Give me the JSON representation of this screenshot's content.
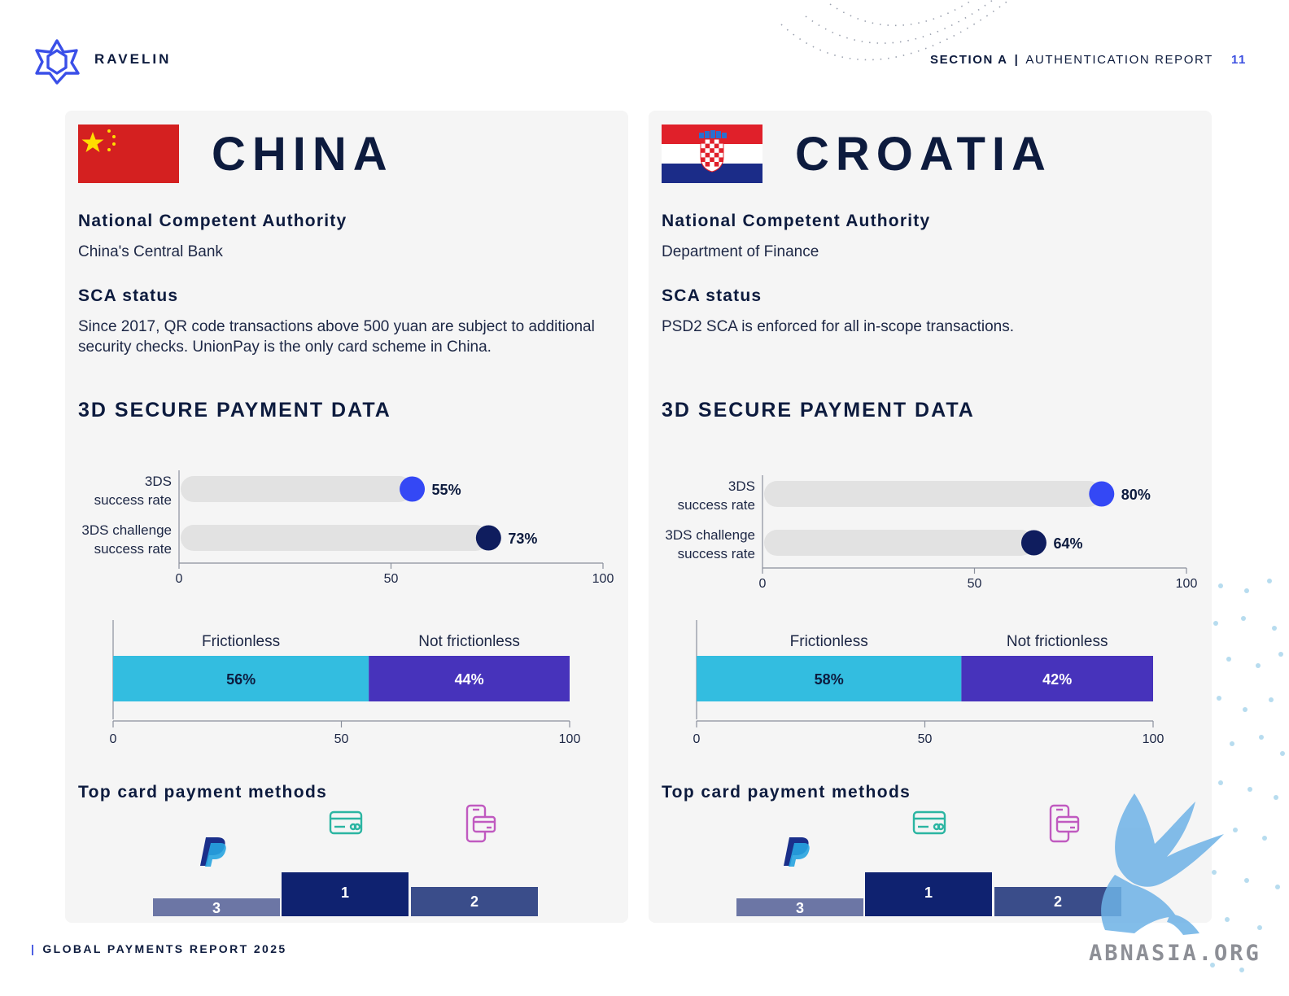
{
  "header": {
    "brand": "RAVELIN",
    "section": "SECTION A",
    "separator": "|",
    "report": "AUTHENTICATION REPORT",
    "page_number": "11"
  },
  "footer": {
    "bar": "|",
    "text": "GLOBAL PAYMENTS REPORT 2025"
  },
  "watermark": "ABNASIA.ORG",
  "countries": [
    {
      "name": "CHINA",
      "flag_icon": "china-flag-icon",
      "nca_heading": "National Competent Authority",
      "nca_value": "China's Central Bank",
      "sca_heading": "SCA status",
      "sca_text": "Since 2017, QR code transactions above 500 yuan are subject to additional security checks. UnionPay is the only card scheme in China.",
      "section_heading": "3D SECURE PAYMENT DATA",
      "top_methods_heading": "Top card payment methods",
      "podium": {
        "first_label": "1",
        "second_label": "2",
        "third_label": "3",
        "first_icon": "credit-card-icon",
        "second_icon": "mobile-wallet-icon",
        "third_icon": "paypal-icon"
      }
    },
    {
      "name": "CROATIA",
      "flag_icon": "croatia-flag-icon",
      "nca_heading": "National Competent Authority",
      "nca_value": "Department of Finance",
      "sca_heading": "SCA status",
      "sca_text": "PSD2 SCA is enforced for all in-scope transactions.",
      "section_heading": "3D SECURE PAYMENT DATA",
      "top_methods_heading": "Top card payment methods",
      "podium": {
        "first_label": "1",
        "second_label": "2",
        "third_label": "3",
        "first_icon": "credit-card-icon",
        "second_icon": "mobile-wallet-icon",
        "third_icon": "paypal-icon"
      }
    }
  ],
  "chart_data": [
    {
      "type": "bar",
      "orientation": "horizontal",
      "categories": [
        "3DS success rate",
        "3DS challenge success rate"
      ],
      "values": [
        55,
        73
      ],
      "value_labels": [
        "55%",
        "73%"
      ],
      "colors": [
        "#3448f5",
        "#0f1d5e"
      ],
      "xlim": [
        0,
        100
      ],
      "xticks": [
        "0",
        "50",
        "100"
      ]
    },
    {
      "type": "bar",
      "orientation": "horizontal",
      "stacked": true,
      "series": [
        {
          "name": "Frictionless",
          "values": [
            56
          ],
          "label": "56%",
          "color": "#33bde0"
        },
        {
          "name": "Not frictionless",
          "values": [
            44
          ],
          "label": "44%",
          "color": "#4733bb"
        }
      ],
      "xlim": [
        0,
        100
      ],
      "xticks": [
        "0",
        "50",
        "100"
      ]
    },
    {
      "type": "bar",
      "orientation": "horizontal",
      "categories": [
        "3DS success rate",
        "3DS challenge success rate"
      ],
      "values": [
        80,
        64
      ],
      "value_labels": [
        "80%",
        "64%"
      ],
      "colors": [
        "#3448f5",
        "#0f1d5e"
      ],
      "xlim": [
        0,
        100
      ],
      "xticks": [
        "0",
        "50",
        "100"
      ]
    },
    {
      "type": "bar",
      "orientation": "horizontal",
      "stacked": true,
      "series": [
        {
          "name": "Frictionless",
          "values": [
            58
          ],
          "label": "58%",
          "color": "#33bde0"
        },
        {
          "name": "Not frictionless",
          "values": [
            42
          ],
          "label": "42%",
          "color": "#4733bb"
        }
      ],
      "xlim": [
        0,
        100
      ],
      "xticks": [
        "0",
        "50",
        "100"
      ]
    }
  ]
}
